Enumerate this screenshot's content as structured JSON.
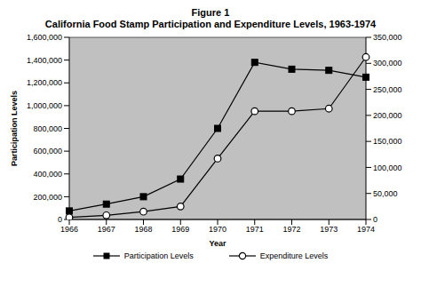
{
  "chart_data": {
    "type": "line",
    "title": "Figure 1",
    "subtitle": "California Food Stamp Participation and Expenditure Levels, 1963-1974",
    "x_label": "Year",
    "y_label": "Participation Levels",
    "categories": [
      "1966",
      "1967",
      "1968",
      "1969",
      "1970",
      "1971",
      "1972",
      "1973",
      "1974"
    ],
    "series": [
      {
        "name": "Participation Levels",
        "color": "#000000",
        "marker": "square",
        "values": [
          75000,
          135000,
          200000,
          355000,
          800000,
          1380000,
          1320000,
          1310000,
          1250000
        ]
      },
      {
        "name": "Expenditure Levels",
        "color": "#000000",
        "marker": "circle",
        "axis": "y2",
        "values": [
          4000,
          8000,
          15000,
          25000,
          117000,
          208000,
          208000,
          213000,
          312000
        ]
      }
    ],
    "ylim": [
      0,
      1600000
    ],
    "yticks": [
      0,
      {
        "value": 200000,
        "label": "200,000"
      },
      {
        "value": 400000,
        "label": "400,000"
      },
      {
        "value": 600000,
        "label": "600,000"
      },
      {
        "value": 800000,
        "label": "800,000"
      },
      {
        "value": 1000000,
        "label": "1,000,000"
      },
      {
        "value": 1200000,
        "label": "1,200,000"
      },
      {
        "value": 1400000,
        "label": "1,400,000"
      },
      {
        "value": 1600000,
        "label": "1,600,000"
      }
    ],
    "y2lim": [
      0,
      350000
    ],
    "y2ticks": [
      0,
      {
        "value": 50000,
        "label": "50,000"
      },
      {
        "value": 100000,
        "label": "100,000"
      },
      {
        "value": 150000,
        "label": "150,000"
      },
      {
        "value": 200000,
        "label": "200,000"
      },
      {
        "value": 250000,
        "label": "250,000"
      },
      {
        "value": 300000,
        "label": "300,000"
      },
      {
        "value": 350000,
        "label": "350,000"
      }
    ],
    "grid": true,
    "legend": "bottom"
  }
}
